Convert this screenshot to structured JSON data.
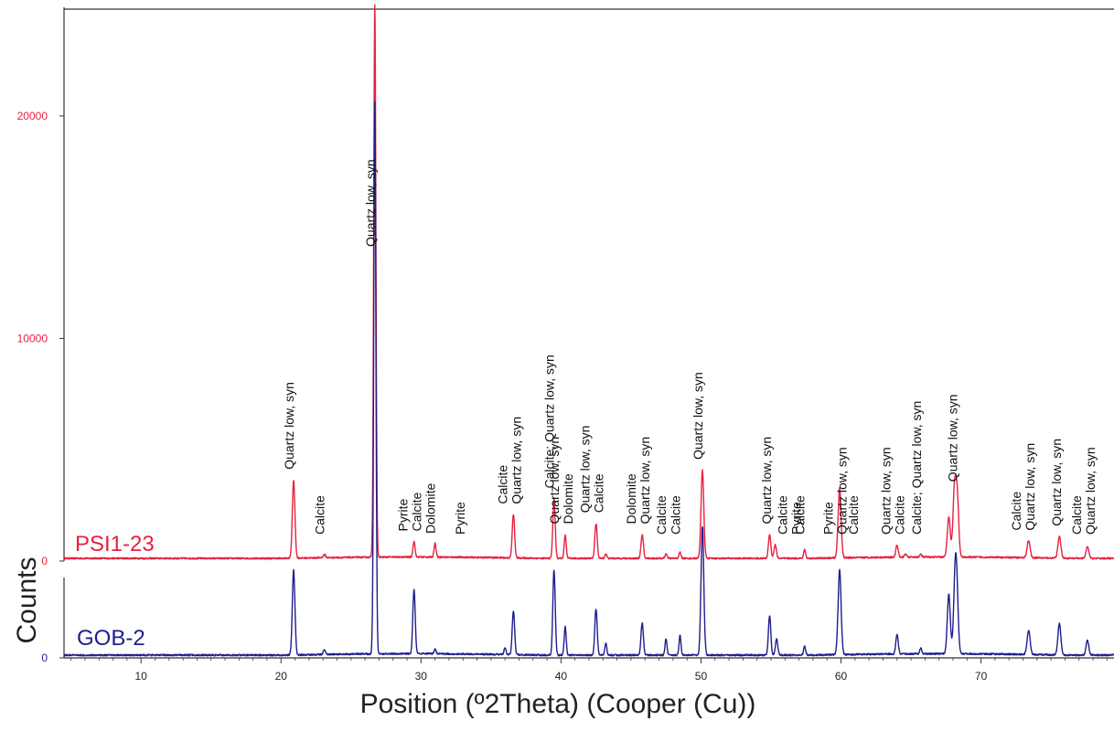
{
  "chart_data": {
    "type": "line",
    "xlabel": "Position (º2Theta) (Cooper (Cu))",
    "ylabel": "Counts",
    "xlim": [
      4.5,
      79.5
    ],
    "xticks": [
      10,
      20,
      30,
      40,
      50,
      60,
      70
    ],
    "grid": false,
    "series": [
      {
        "name": "PSI1-23",
        "color": "#e8213f",
        "yticks": [
          {
            "value": 0,
            "label": "0"
          },
          {
            "value": 10000,
            "label": "10000"
          },
          {
            "value": 20000,
            "label": "20000"
          }
        ],
        "ymax": 24800,
        "baseline": 120,
        "peaks": [
          {
            "x": 20.9,
            "y": 3500,
            "w": 0.13
          },
          {
            "x": 23.1,
            "y": 140,
            "w": 0.12
          },
          {
            "x": 26.7,
            "y": 24800,
            "w": 0.11
          },
          {
            "x": 29.5,
            "y": 720,
            "w": 0.1
          },
          {
            "x": 31.0,
            "y": 620,
            "w": 0.1
          },
          {
            "x": 36.6,
            "y": 1950,
            "w": 0.12
          },
          {
            "x": 39.5,
            "y": 2650,
            "w": 0.12
          },
          {
            "x": 40.3,
            "y": 1050,
            "w": 0.1
          },
          {
            "x": 42.5,
            "y": 1550,
            "w": 0.12
          },
          {
            "x": 43.2,
            "y": 200,
            "w": 0.1
          },
          {
            "x": 45.8,
            "y": 1050,
            "w": 0.12
          },
          {
            "x": 47.5,
            "y": 200,
            "w": 0.1
          },
          {
            "x": 48.5,
            "y": 280,
            "w": 0.1
          },
          {
            "x": 50.1,
            "y": 3950,
            "w": 0.14
          },
          {
            "x": 54.9,
            "y": 1050,
            "w": 0.12
          },
          {
            "x": 55.3,
            "y": 620,
            "w": 0.12
          },
          {
            "x": 57.4,
            "y": 400,
            "w": 0.1
          },
          {
            "x": 59.9,
            "y": 3150,
            "w": 0.15
          },
          {
            "x": 64.0,
            "y": 530,
            "w": 0.12
          },
          {
            "x": 64.6,
            "y": 150,
            "w": 0.1
          },
          {
            "x": 65.7,
            "y": 130,
            "w": 0.1
          },
          {
            "x": 67.7,
            "y": 1800,
            "w": 0.15
          },
          {
            "x": 68.1,
            "y": 2950,
            "w": 0.15
          },
          {
            "x": 68.3,
            "y": 2700,
            "w": 0.15
          },
          {
            "x": 73.4,
            "y": 760,
            "w": 0.15
          },
          {
            "x": 75.6,
            "y": 960,
            "w": 0.15
          },
          {
            "x": 77.6,
            "y": 520,
            "w": 0.14
          },
          {
            "x": 79.8,
            "y": 920,
            "w": 0.15
          }
        ]
      },
      {
        "name": "GOB-2",
        "color": "#1f1d8c",
        "yticks": [
          {
            "value": 0,
            "label": "0"
          },
          {
            "value": 10000,
            "label": "10000"
          },
          {
            "value": 20000,
            "label": "20000"
          }
        ],
        "ymax": 24000,
        "baseline": 120,
        "peaks": [
          {
            "x": 20.9,
            "y": 3700,
            "w": 0.13
          },
          {
            "x": 23.1,
            "y": 200,
            "w": 0.12
          },
          {
            "x": 26.7,
            "y": 24000,
            "w": 0.11
          },
          {
            "x": 29.5,
            "y": 2800,
            "w": 0.12
          },
          {
            "x": 31.0,
            "y": 200,
            "w": 0.1
          },
          {
            "x": 36.0,
            "y": 280,
            "w": 0.1
          },
          {
            "x": 36.6,
            "y": 1900,
            "w": 0.12
          },
          {
            "x": 39.5,
            "y": 3700,
            "w": 0.12
          },
          {
            "x": 40.3,
            "y": 1250,
            "w": 0.1
          },
          {
            "x": 42.5,
            "y": 2000,
            "w": 0.12
          },
          {
            "x": 43.2,
            "y": 500,
            "w": 0.1
          },
          {
            "x": 45.8,
            "y": 1400,
            "w": 0.12
          },
          {
            "x": 47.5,
            "y": 700,
            "w": 0.1
          },
          {
            "x": 48.5,
            "y": 850,
            "w": 0.1
          },
          {
            "x": 50.1,
            "y": 5600,
            "w": 0.14
          },
          {
            "x": 54.9,
            "y": 1700,
            "w": 0.12
          },
          {
            "x": 55.4,
            "y": 700,
            "w": 0.12
          },
          {
            "x": 57.4,
            "y": 400,
            "w": 0.1
          },
          {
            "x": 59.9,
            "y": 3700,
            "w": 0.15
          },
          {
            "x": 64.0,
            "y": 850,
            "w": 0.12
          },
          {
            "x": 65.7,
            "y": 250,
            "w": 0.1
          },
          {
            "x": 67.7,
            "y": 2600,
            "w": 0.15
          },
          {
            "x": 68.2,
            "y": 4400,
            "w": 0.18
          },
          {
            "x": 73.4,
            "y": 1050,
            "w": 0.15
          },
          {
            "x": 75.6,
            "y": 1350,
            "w": 0.15
          },
          {
            "x": 77.6,
            "y": 650,
            "w": 0.14
          },
          {
            "x": 79.8,
            "y": 1200,
            "w": 0.15
          }
        ]
      }
    ],
    "annotations": [
      {
        "x": 20.9,
        "lines": [
          "Quartz low, syn"
        ]
      },
      {
        "x": 23.1,
        "lines": [
          "Calcite"
        ]
      },
      {
        "x": 26.7,
        "lines": [
          "Quartz low, syn"
        ]
      },
      {
        "x": 29.5,
        "lines": [
          "Pyrite",
          "Calcite"
        ]
      },
      {
        "x": 31.0,
        "lines": [
          "Dolomite"
        ]
      },
      {
        "x": 33.1,
        "lines": [
          "Pyrite"
        ]
      },
      {
        "x": 36.6,
        "lines": [
          "Calcite",
          "Quartz low, syn"
        ]
      },
      {
        "x": 39.5,
        "lines": [
          "Calcite; Quartz low, syn"
        ]
      },
      {
        "x": 40.3,
        "lines": [
          "Quartz low, syn",
          "Dolomite"
        ]
      },
      {
        "x": 42.5,
        "lines": [
          "Quartz low, syn",
          "Calcite"
        ]
      },
      {
        "x": 45.8,
        "lines": [
          "Dolomite",
          "Quartz low, syn"
        ]
      },
      {
        "x": 47.5,
        "lines": [
          "Calcite"
        ]
      },
      {
        "x": 48.5,
        "lines": [
          "Calcite"
        ]
      },
      {
        "x": 50.1,
        "lines": [
          "Quartz low, syn"
        ]
      },
      {
        "x": 55.0,
        "lines": [
          "Quartz low, syn"
        ]
      },
      {
        "x": 56.6,
        "lines": [
          "Calcite",
          "Pyrite"
        ]
      },
      {
        "x": 57.4,
        "lines": [
          "Calcite"
        ]
      },
      {
        "x": 59.4,
        "lines": [
          "Pyrite"
        ]
      },
      {
        "x": 60.4,
        "lines": [
          "Quartz low, syn"
        ]
      },
      {
        "x": 61.2,
        "lines": [
          "Calcite"
        ]
      },
      {
        "x": 64.0,
        "lines": [
          "Quartz low, syn",
          "Calcite"
        ]
      },
      {
        "x": 65.7,
        "lines": [
          "Calcite; Quartz low, syn"
        ]
      },
      {
        "x": 68.3,
        "lines": [
          "Quartz low, syn"
        ]
      },
      {
        "x": 73.3,
        "lines": [
          "Calcite",
          "Quartz low, syn"
        ]
      },
      {
        "x": 75.7,
        "lines": [
          "Quartz low, syn"
        ]
      },
      {
        "x": 77.6,
        "lines": [
          "Calcite",
          "Quartz low, syn"
        ]
      }
    ]
  }
}
